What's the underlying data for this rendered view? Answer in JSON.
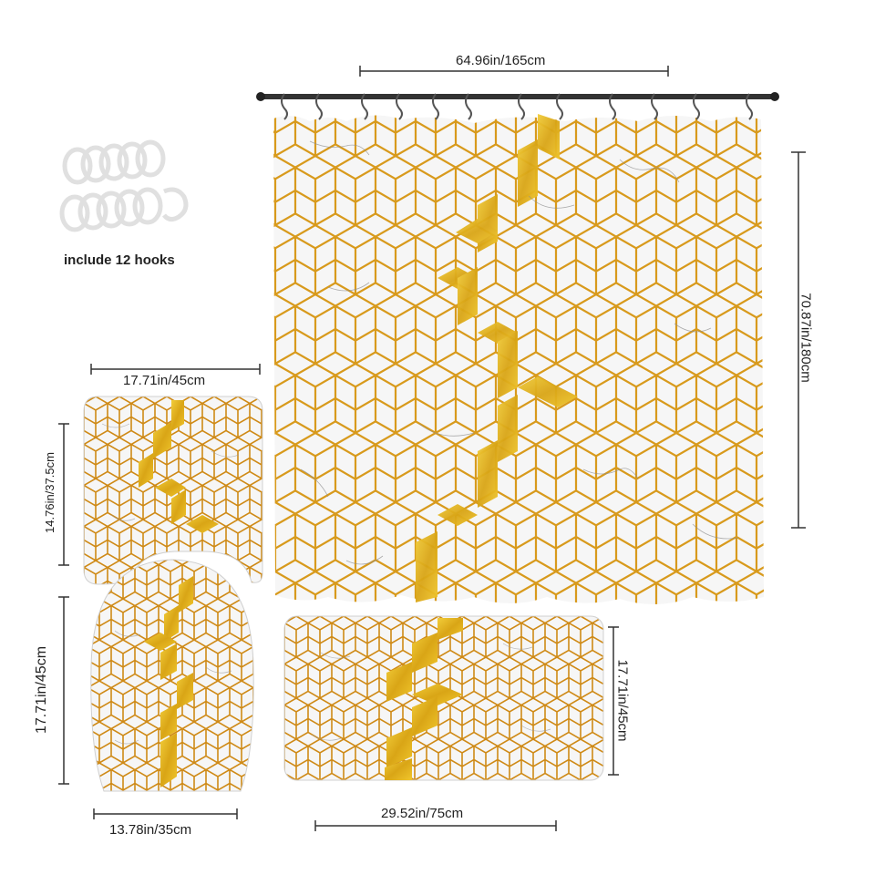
{
  "hooks": {
    "label": "include 12 hooks",
    "count": 12,
    "color": "#e6e6e6"
  },
  "dimensions": {
    "curtain_width": "64.96in/165cm",
    "curtain_height": "70.87in/180cm",
    "contour_width": "17.71in/45cm",
    "contour_height": "14.76in/37.5cm",
    "lid_height": "17.71in/45cm",
    "lid_width": "13.78in/35cm",
    "mat_height": "17.71in/45cm",
    "mat_width": "29.52in/75cm"
  },
  "pattern": {
    "line_color": "#d89a1c",
    "glitter_color": "#e2b21a",
    "marble_bg": "#f4f4f4",
    "vein_color": "#9a9a9a"
  }
}
